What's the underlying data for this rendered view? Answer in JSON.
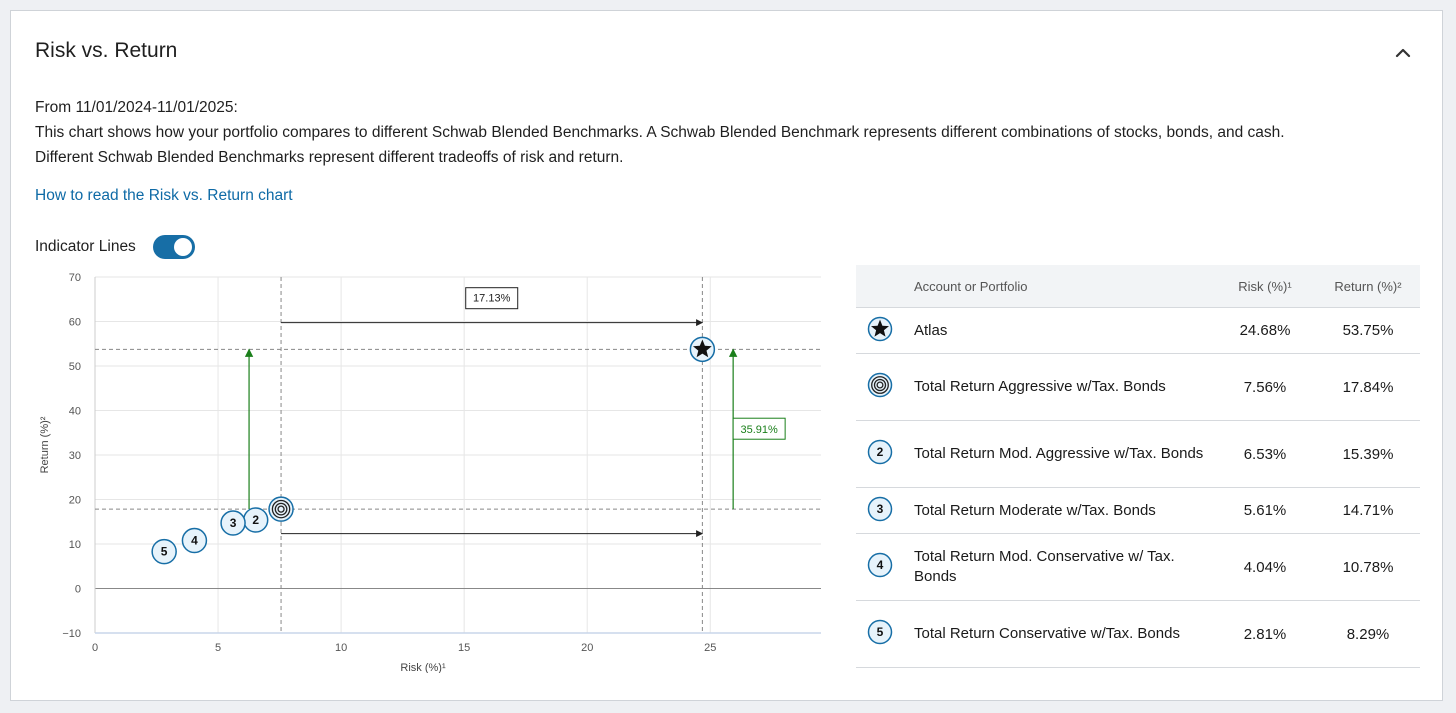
{
  "panel": {
    "title": "Risk vs. Return",
    "date_range": "From 11/01/2024-11/01/2025:",
    "description_1": "This chart shows how your portfolio compares to different Schwab Blended Benchmarks. A Schwab Blended Benchmark represents different combinations of stocks, bonds, and cash.",
    "description_2": "Different Schwab Blended Benchmarks represent different tradeoffs of risk and return.",
    "help_link": "How to read the Risk vs. Return chart",
    "toggle_label": "Indicator Lines",
    "toggle_on": true,
    "accent_color": "#176ea6",
    "link_color": "#0e6aa6",
    "indicator_up_color": "#1a7f1a"
  },
  "chart_data": {
    "type": "scatter",
    "xlabel": "Risk (%)¹",
    "ylabel": "Return (%)²",
    "xlim": [
      0,
      29.5
    ],
    "ylim": [
      -10,
      70
    ],
    "xticks": [
      0,
      5,
      10,
      15,
      20,
      25
    ],
    "yticks": [
      -10,
      0,
      10,
      20,
      30,
      40,
      50,
      60,
      70
    ],
    "grid": true,
    "points": [
      {
        "label": "Atlas",
        "marker": "star",
        "x": 24.68,
        "y": 53.75
      },
      {
        "label": "Total Return Aggressive w/Tax. Bonds",
        "marker": "target",
        "x": 7.56,
        "y": 17.84
      },
      {
        "label": "2",
        "marker": "2",
        "x": 6.53,
        "y": 15.39
      },
      {
        "label": "3",
        "marker": "3",
        "x": 5.61,
        "y": 14.71
      },
      {
        "label": "4",
        "marker": "4",
        "x": 4.04,
        "y": 10.78
      },
      {
        "label": "5",
        "marker": "5",
        "x": 2.81,
        "y": 8.29
      }
    ],
    "annotations": {
      "risk_difference": "17.13%",
      "return_difference": "35.91%"
    }
  },
  "table": {
    "headers": [
      "Account or Portfolio",
      "Risk (%)¹",
      "Return (%)²"
    ],
    "rows": [
      {
        "marker": "star",
        "name": "Atlas",
        "risk": "24.68%",
        "ret": "53.75%"
      },
      {
        "marker": "target",
        "name": "Total Return Aggressive w/Tax. Bonds",
        "risk": "7.56%",
        "ret": "17.84%"
      },
      {
        "marker": "2",
        "name": "Total Return Mod. Aggressive w/Tax. Bonds",
        "risk": "6.53%",
        "ret": "15.39%"
      },
      {
        "marker": "3",
        "name": "Total Return Moderate w/Tax. Bonds",
        "risk": "5.61%",
        "ret": "14.71%"
      },
      {
        "marker": "4",
        "name": "Total Return Mod. Conservative w/ Tax. Bonds",
        "risk": "4.04%",
        "ret": "10.78%"
      },
      {
        "marker": "5",
        "name": "Total Return Conservative w/Tax. Bonds",
        "risk": "2.81%",
        "ret": "8.29%"
      }
    ]
  }
}
